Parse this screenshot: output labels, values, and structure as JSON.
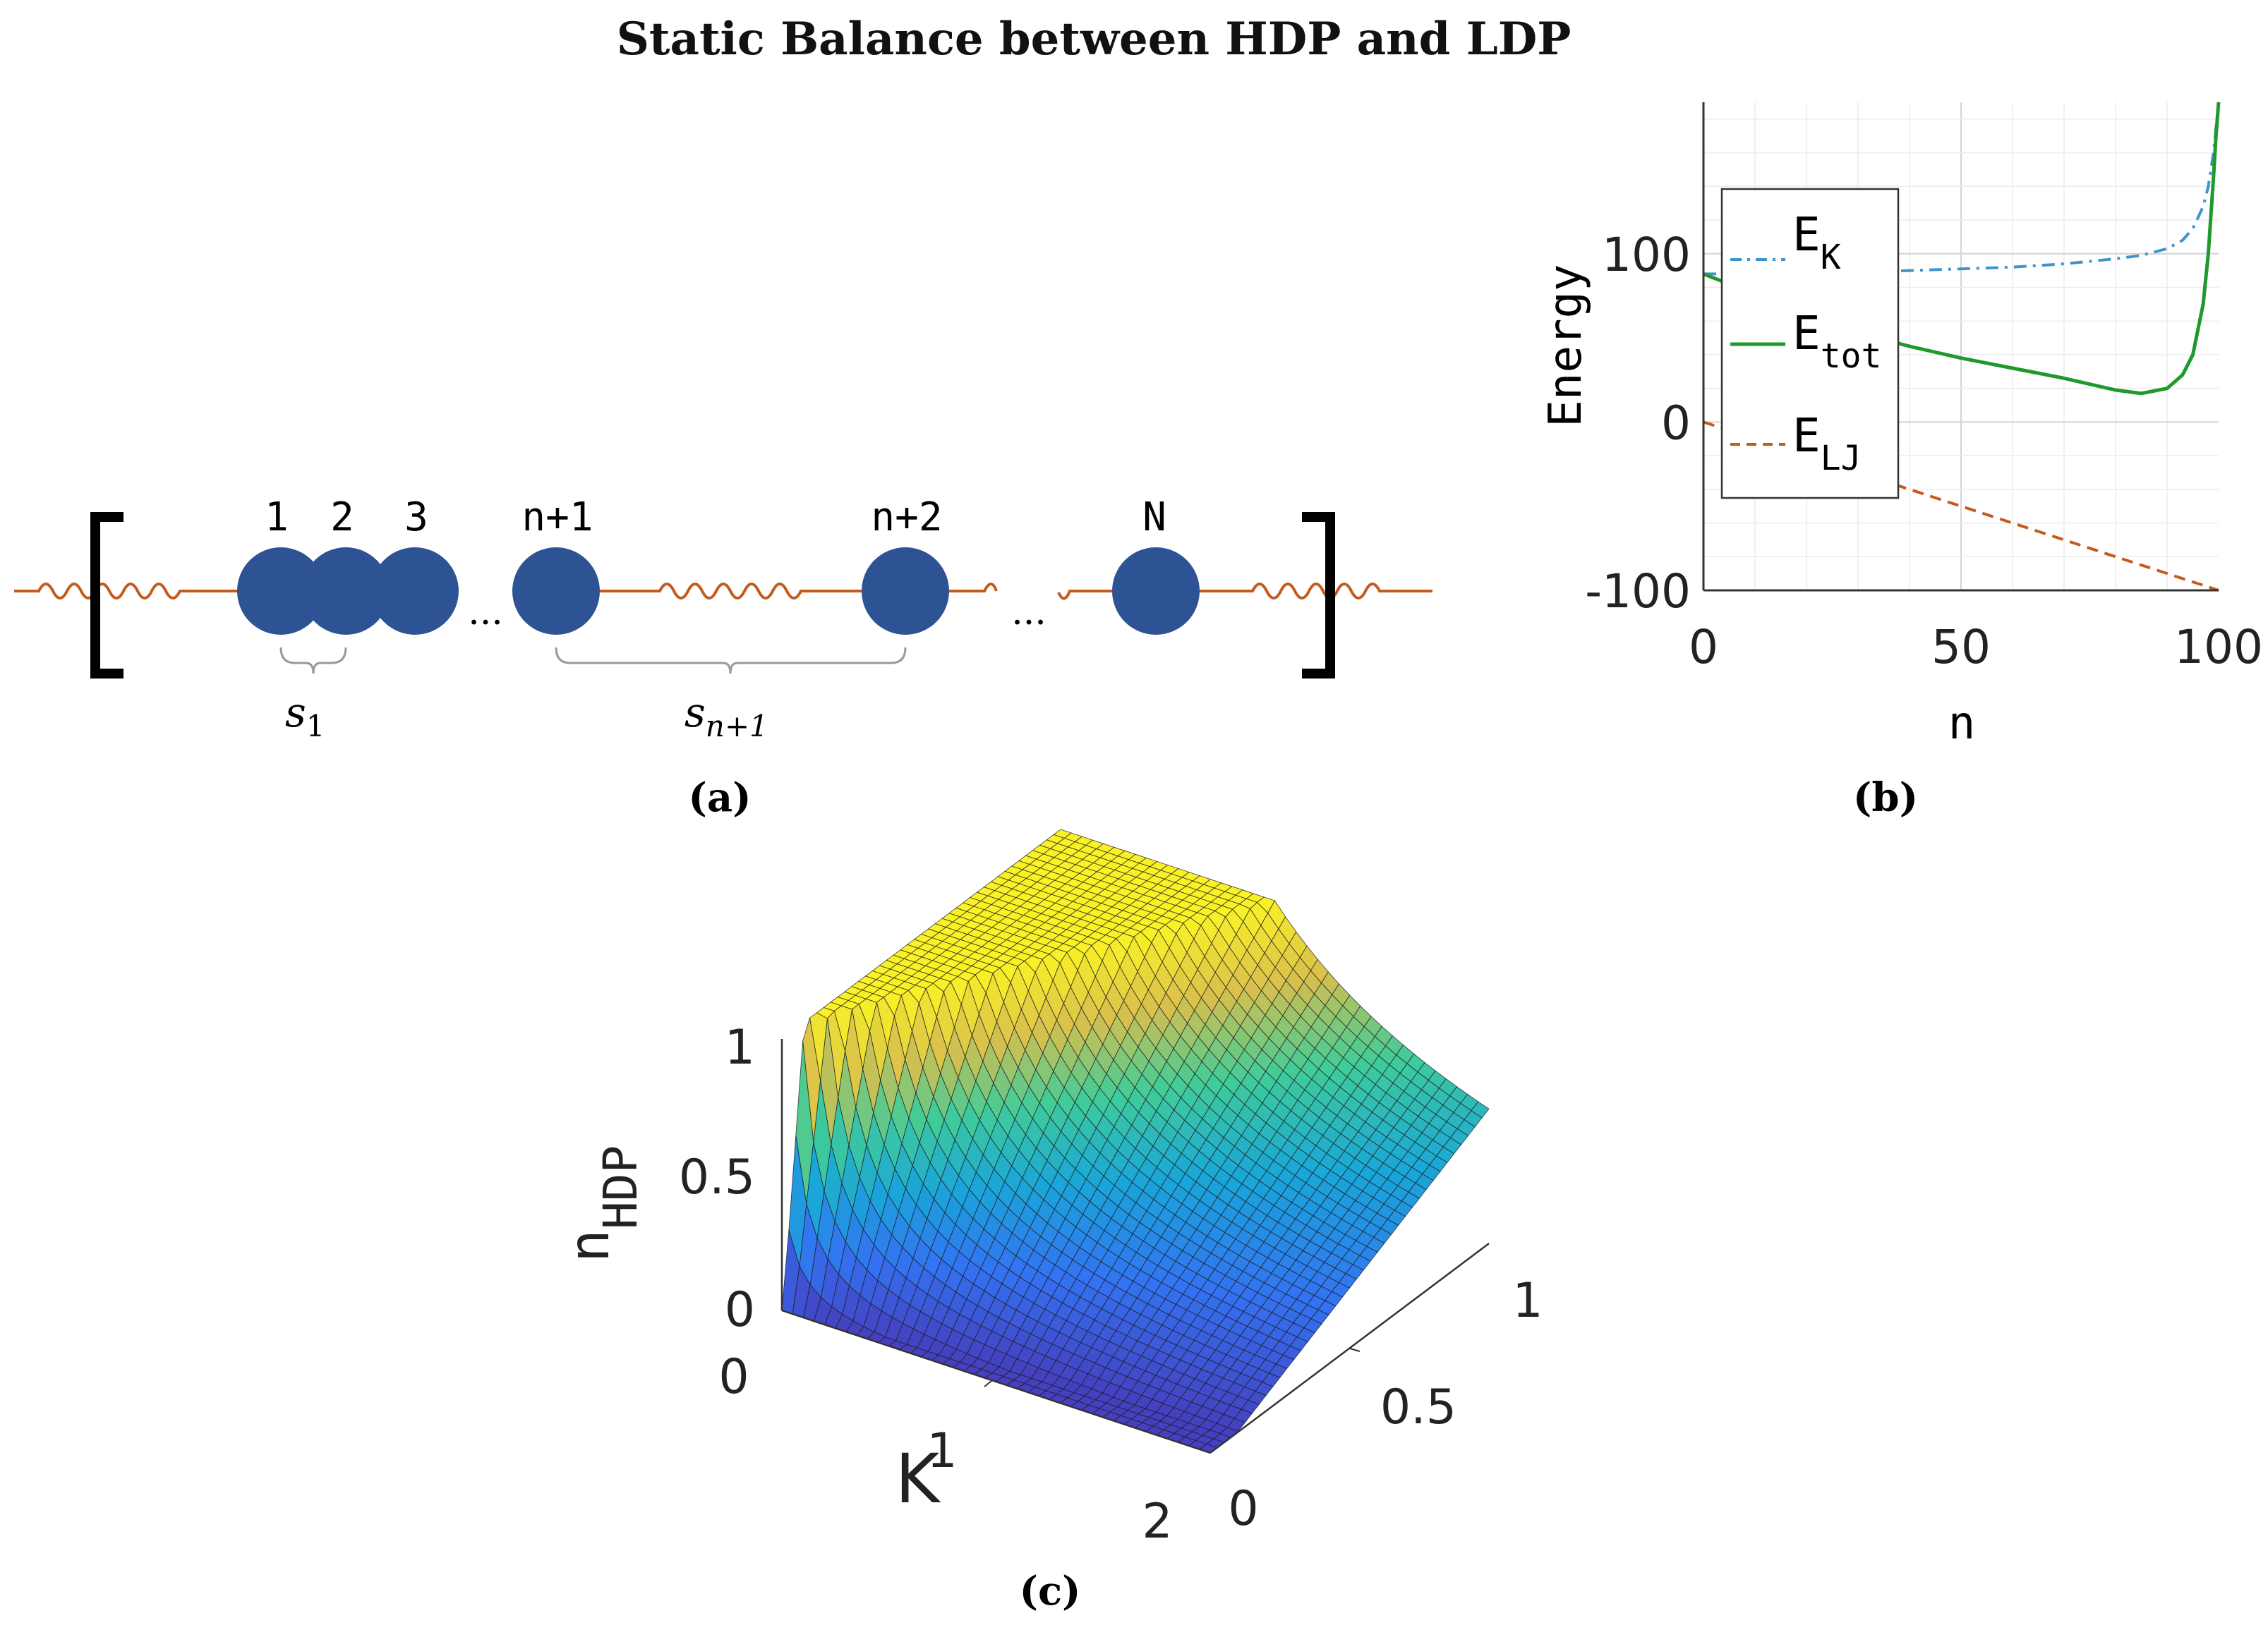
{
  "figure": {
    "title": "Static Balance between HDP and LDP",
    "panel_labels": [
      "(a)",
      "(b)",
      "(c)"
    ]
  },
  "colors": {
    "particle": "#2e5394",
    "spring": "#c45a1c",
    "ek_series": "#3e95c8",
    "etot_series": "#1e9a2c",
    "elj_series": "#c45a1c"
  },
  "schematic": {
    "particle_labels": [
      "1",
      "2",
      "3",
      "n+1",
      "n+2",
      "N"
    ],
    "ellipsis": "...",
    "gap_label_1": "s",
    "gap_label_1_sub": "1",
    "gap_label_2": "s",
    "gap_label_2_sub": "n+1"
  },
  "chart_data": [
    {
      "type": "line",
      "xlabel": "n",
      "ylabel": "Energy",
      "xlim": [
        0,
        100
      ],
      "ylim": [
        -100,
        190
      ],
      "xticks": [
        "0",
        "50",
        "100"
      ],
      "yticks": [
        "100",
        "0",
        "-100"
      ],
      "grid": true,
      "legend": "top-left",
      "x": [
        0,
        5,
        10,
        20,
        30,
        40,
        50,
        60,
        70,
        80,
        85,
        90,
        93,
        95,
        97,
        98,
        99,
        99.5,
        100
      ],
      "series": [
        {
          "name": "E",
          "name_sub": "K",
          "style": "dash-dot",
          "values": [
            88,
            88,
            88,
            89,
            89,
            90,
            91,
            92,
            94,
            97,
            99,
            103,
            108,
            115,
            128,
            140,
            160,
            175,
            190
          ]
        },
        {
          "name": "E",
          "name_sub": "tot",
          "style": "solid",
          "values": [
            88,
            82,
            76,
            64,
            53,
            45,
            38,
            32,
            26,
            19,
            17,
            20,
            28,
            40,
            70,
            100,
            145,
            170,
            190
          ]
        },
        {
          "name": "E",
          "name_sub": "LJ",
          "style": "dashed",
          "values": [
            0,
            -5,
            -10,
            -20,
            -30,
            -40,
            -50,
            -60,
            -70,
            -80,
            -85,
            -90,
            -93,
            -95,
            -97,
            -98,
            -99,
            -99.5,
            -100
          ]
        }
      ]
    },
    {
      "type": "surface",
      "xlabel": "K",
      "ylabel": "",
      "zlabel": "n",
      "zlabel_sub": "HDP",
      "xlim": [
        0,
        2
      ],
      "ylim": [
        0,
        1
      ],
      "zlim": [
        0,
        1
      ],
      "xticks": [
        "0",
        "1",
        "2"
      ],
      "yticks": [
        "0",
        "0.5",
        "1"
      ],
      "zticks": [
        "0",
        "0.5",
        "1"
      ],
      "colormap": "parula"
    }
  ]
}
